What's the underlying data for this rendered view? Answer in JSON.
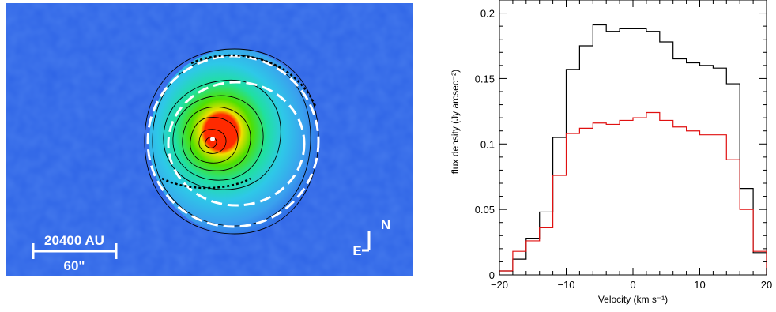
{
  "colors": {
    "map_background": "#2e64e6",
    "black_series": "#000000",
    "red_series": "#e01010"
  },
  "map": {
    "scalebar_top_label": "20400 AU",
    "scalebar_bottom_label": "60\"",
    "compass_north": "N",
    "compass_east": "E"
  },
  "chart_data": {
    "type": "line",
    "step": true,
    "xlabel": "Velocity (km s⁻¹)",
    "ylabel": "flux density (Jy arcsec⁻²)",
    "xlim": [
      -20,
      20
    ],
    "ylim": [
      0,
      0.21
    ],
    "x_ticks": [
      -20,
      -10,
      0,
      10,
      20
    ],
    "y_ticks": [
      0,
      0.05,
      0.1,
      0.15,
      0.2
    ],
    "x_tick_labels": [
      "−20",
      "−10",
      "0",
      "10",
      "20"
    ],
    "y_tick_labels": [
      "0",
      "0.05",
      "0.1",
      "0.15",
      "0.2"
    ],
    "bin_edges": [
      -20,
      -18,
      -16,
      -14,
      -12,
      -10,
      -8,
      -6,
      -4,
      -2,
      0,
      2,
      4,
      6,
      8,
      10,
      12,
      14,
      16,
      18,
      20
    ],
    "series": [
      {
        "color": "black",
        "values": [
          0.003,
          0.012,
          0.028,
          0.048,
          0.105,
          0.157,
          0.175,
          0.191,
          0.186,
          0.188,
          0.188,
          0.186,
          0.178,
          0.165,
          0.162,
          0.16,
          0.158,
          0.146,
          0.066,
          0.017
        ]
      },
      {
        "color": "red",
        "values": [
          0.003,
          0.018,
          0.026,
          0.036,
          0.076,
          0.108,
          0.112,
          0.116,
          0.115,
          0.118,
          0.12,
          0.124,
          0.118,
          0.113,
          0.11,
          0.107,
          0.107,
          0.088,
          0.05,
          0.018
        ]
      }
    ]
  }
}
